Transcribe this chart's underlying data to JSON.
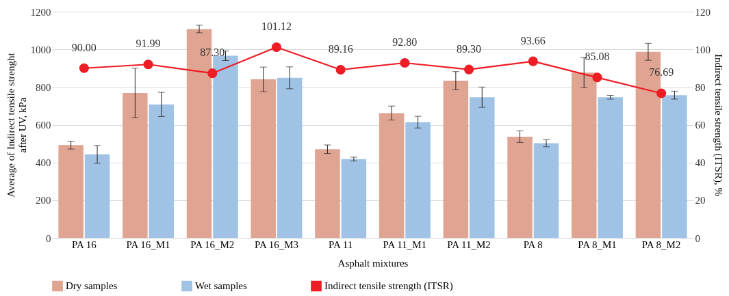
{
  "chart_data": {
    "type": "bar",
    "xlabel": "Asphalt mixtures",
    "ylabel": "Average of Indirect tensile strenght after UV, kPa",
    "y2label": "Indirect tensile strength (ITSR), %",
    "categories": [
      "PA 16",
      "PA 16_M1",
      "PA 16_M2",
      "PA 16_M3",
      "PA 11",
      "PA 11_M1",
      "PA 11_M2",
      "PA 8",
      "PA 8_M1",
      "PA 8_M2"
    ],
    "series": [
      {
        "name": "Dry samples",
        "color": "#e0a592",
        "values": [
          492,
          769,
          1108,
          841,
          470,
          662,
          834,
          537,
          876,
          987
        ],
        "errors": [
          21,
          131,
          20,
          65,
          23,
          37,
          48,
          31,
          80,
          45
        ]
      },
      {
        "name": "Wet samples",
        "color": "#9fc2e5",
        "values": [
          443,
          708,
          966,
          849,
          418,
          614,
          746,
          502,
          746,
          757
        ],
        "errors": [
          47,
          64,
          25,
          58,
          10,
          31,
          54,
          19,
          10,
          21
        ]
      },
      {
        "name": "Indirect tensile strength (ITSR)",
        "type": "line",
        "axis": "y2",
        "color": "#ee1c25",
        "marker": "circle",
        "values": [
          90.0,
          91.99,
          87.3,
          101.12,
          89.16,
          92.8,
          89.3,
          93.66,
          85.08,
          76.69
        ],
        "value_labels": [
          "90.00",
          "91.99",
          "87.30",
          "101.12",
          "89.16",
          "92.80",
          "89.30",
          "93.66",
          "85.08",
          "76.69"
        ]
      }
    ],
    "ylim": [
      0,
      1200
    ],
    "yticks": [
      0,
      200,
      400,
      600,
      800,
      1000,
      1200
    ],
    "y2lim": [
      0,
      120
    ],
    "y2ticks": [
      0,
      20,
      40,
      60,
      80,
      100,
      120
    ],
    "grid": "y",
    "legend": "bottom"
  }
}
